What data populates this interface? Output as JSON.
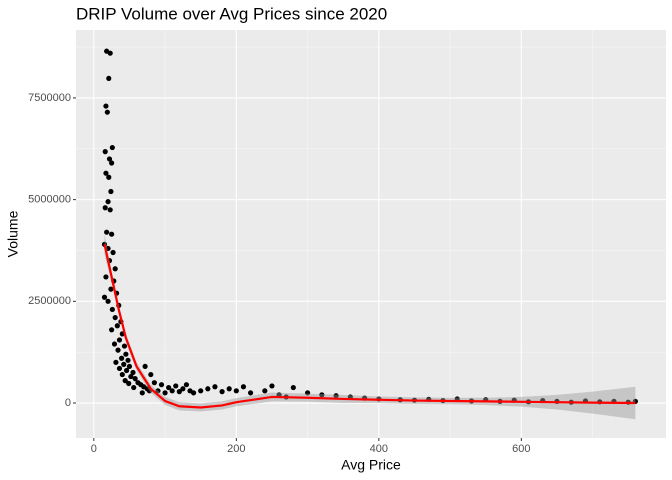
{
  "chart_data": {
    "type": "scatter",
    "title": "DRIP Volume over Avg Prices since 2020",
    "x_label": "Avg Price",
    "y_label": "Volume",
    "xlim": [
      -25,
      803
    ],
    "ylim": [
      -860000,
      9170000
    ],
    "xticks": [
      0,
      200,
      400,
      600
    ],
    "yticks": [
      0,
      2500000,
      5000000,
      7500000
    ],
    "grid": true,
    "point_color": "#000000",
    "x": [
      18,
      23,
      21,
      17,
      19,
      26,
      16,
      22,
      25,
      17,
      21,
      24,
      20,
      16,
      23,
      18,
      25,
      15,
      20,
      27,
      22,
      30,
      17,
      28,
      24,
      32,
      15,
      20,
      35,
      26,
      30,
      38,
      33,
      25,
      40,
      36,
      29,
      43,
      34,
      45,
      39,
      48,
      31,
      42,
      50,
      36,
      46,
      55,
      40,
      52,
      58,
      44,
      62,
      49,
      66,
      72,
      70,
      56,
      75,
      80,
      78,
      85,
      68,
      90,
      95,
      100,
      105,
      110,
      115,
      120,
      125,
      130,
      135,
      140,
      150,
      160,
      170,
      180,
      190,
      200,
      210,
      220,
      240,
      250,
      260,
      270,
      280,
      300,
      320,
      340,
      360,
      380,
      400,
      430,
      450,
      470,
      490,
      510,
      530,
      550,
      570,
      590,
      610,
      630,
      650,
      670,
      690,
      710,
      730,
      750,
      760
    ],
    "y": [
      8650000,
      8600000,
      7980000,
      7300000,
      7150000,
      6280000,
      6180000,
      6000000,
      5900000,
      5650000,
      5550000,
      5200000,
      4950000,
      4800000,
      4750000,
      4200000,
      4150000,
      3900000,
      3800000,
      3700000,
      3500000,
      3300000,
      3100000,
      3000000,
      2800000,
      2700000,
      2600000,
      2500000,
      2400000,
      2300000,
      2100000,
      2000000,
      1900000,
      1800000,
      1700000,
      1550000,
      1450000,
      1400000,
      1300000,
      1200000,
      1100000,
      1050000,
      1000000,
      950000,
      900000,
      850000,
      800000,
      750000,
      700000,
      650000,
      600000,
      550000,
      500000,
      480000,
      450000,
      900000,
      400000,
      380000,
      350000,
      700000,
      300000,
      500000,
      250000,
      300000,
      450000,
      250000,
      380000,
      300000,
      420000,
      280000,
      350000,
      450000,
      300000,
      250000,
      300000,
      350000,
      400000,
      280000,
      350000,
      300000,
      400000,
      250000,
      300000,
      420000,
      200000,
      150000,
      380000,
      250000,
      200000,
      180000,
      150000,
      120000,
      100000,
      80000,
      70000,
      90000,
      60000,
      100000,
      50000,
      80000,
      40000,
      70000,
      30000,
      60000,
      40000,
      20000,
      50000,
      30000,
      40000,
      20000,
      40000
    ],
    "smooth": {
      "color": "#ff0000",
      "band_color": "#999999",
      "x": [
        15,
        25,
        35,
        45,
        60,
        80,
        100,
        120,
        150,
        180,
        200,
        250,
        300,
        350,
        400,
        450,
        500,
        550,
        600,
        650,
        700,
        760
      ],
      "y": [
        3900000,
        3100000,
        2300000,
        1600000,
        900000,
        350000,
        50000,
        -80000,
        -110000,
        -60000,
        20000,
        150000,
        130000,
        100000,
        80000,
        60000,
        50000,
        40000,
        30000,
        20000,
        10000,
        0
      ],
      "lower": [
        3650000,
        2950000,
        2180000,
        1490000,
        800000,
        250000,
        -50000,
        -180000,
        -210000,
        -160000,
        -80000,
        40000,
        30000,
        0,
        0,
        -20000,
        -30000,
        -50000,
        -90000,
        -160000,
        -260000,
        -400000
      ],
      "upper": [
        4150000,
        3250000,
        2420000,
        1710000,
        1000000,
        450000,
        150000,
        20000,
        -10000,
        40000,
        120000,
        260000,
        230000,
        200000,
        160000,
        140000,
        130000,
        130000,
        150000,
        200000,
        280000,
        400000
      ]
    }
  }
}
